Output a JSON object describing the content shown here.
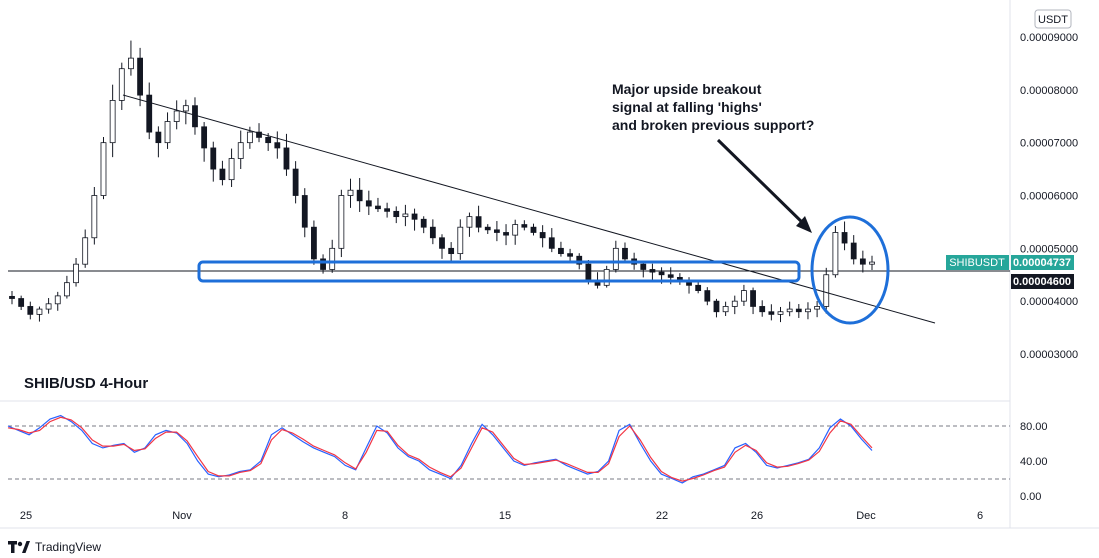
{
  "chart_data": {
    "type": "candlestick",
    "symbol": "SHIBUSDT",
    "title": "SHIB/USD 4-Hour",
    "currency": "USDT",
    "y_ticks": [
      "0.00009000",
      "0.00008000",
      "0.00007000",
      "0.00006000",
      "0.00005000",
      "0.00004000",
      "0.00003000"
    ],
    "y_range": [
      2.6e-05,
      9.3e-05
    ],
    "x_ticks": [
      "25",
      "Nov",
      "8",
      "15",
      "22",
      "26",
      "Dec",
      "6"
    ],
    "last_price": "0.00004737",
    "level_price": "0.00004600",
    "annotation": "Major upside breakout\nsignal at falling 'highs'\nand broken previous support?",
    "candles_approx_close": [
      4.05e-05,
      3.9e-05,
      3.75e-05,
      3.85e-05,
      3.95e-05,
      4.1e-05,
      4.35e-05,
      4.7e-05,
      5.2e-05,
      6e-05,
      7e-05,
      7.8e-05,
      8.4e-05,
      8.6e-05,
      7.9e-05,
      7.2e-05,
      7e-05,
      7.4e-05,
      7.6e-05,
      7.7e-05,
      7.3e-05,
      6.9e-05,
      6.5e-05,
      6.3e-05,
      6.7e-05,
      7e-05,
      7.2e-05,
      7.1e-05,
      7e-05,
      6.9e-05,
      6.5e-05,
      6e-05,
      5.4e-05,
      4.8e-05,
      4.6e-05,
      5e-05,
      6e-05,
      6.1e-05,
      5.9e-05,
      5.8e-05,
      5.75e-05,
      5.7e-05,
      5.6e-05,
      5.65e-05,
      5.55e-05,
      5.4e-05,
      5.2e-05,
      5e-05,
      4.9e-05,
      5.4e-05,
      5.6e-05,
      5.4e-05,
      5.35e-05,
      5.3e-05,
      5.25e-05,
      5.45e-05,
      5.4e-05,
      5.3e-05,
      5.2e-05,
      5e-05,
      4.9e-05,
      4.85e-05,
      4.7e-05,
      4.4e-05,
      4.3e-05,
      4.6e-05,
      5e-05,
      4.8e-05,
      4.7e-05,
      4.6e-05,
      4.55e-05,
      4.5e-05,
      4.45e-05,
      4.4e-05,
      4.3e-05,
      4.2e-05,
      4e-05,
      3.8e-05,
      3.9e-05,
      4e-05,
      4.2e-05,
      3.9e-05,
      3.8e-05,
      3.75e-05,
      3.8e-05,
      3.85e-05,
      3.8e-05,
      3.85e-05,
      3.9e-05,
      4.5e-05,
      5.3e-05,
      5.1e-05,
      4.8e-05,
      4.7e-05,
      4.74e-05
    ],
    "oscillator": {
      "y_ticks": [
        "80.00",
        "40.00",
        "0.00"
      ],
      "y_range": [
        0,
        100
      ],
      "levels": [
        80,
        20
      ],
      "series": [
        {
          "color": "#2962ff",
          "values": [
            80,
            75,
            70,
            78,
            88,
            92,
            85,
            75,
            60,
            55,
            58,
            60,
            50,
            55,
            70,
            75,
            72,
            60,
            40,
            25,
            22,
            24,
            28,
            30,
            40,
            70,
            78,
            70,
            62,
            55,
            50,
            45,
            35,
            30,
            55,
            80,
            72,
            55,
            45,
            40,
            30,
            25,
            20,
            35,
            60,
            82,
            70,
            55,
            40,
            35,
            38,
            40,
            42,
            35,
            30,
            25,
            28,
            40,
            75,
            82,
            60,
            40,
            25,
            20,
            15,
            22,
            25,
            30,
            35,
            55,
            60,
            50,
            35,
            32,
            35,
            38,
            42,
            55,
            78,
            88,
            80,
            65,
            52
          ]
        },
        {
          "color": "#f23645",
          "values": [
            78,
            76,
            72,
            75,
            85,
            90,
            87,
            78,
            64,
            57,
            57,
            59,
            52,
            54,
            66,
            73,
            73,
            63,
            45,
            28,
            23,
            23,
            27,
            29,
            37,
            64,
            76,
            72,
            65,
            57,
            52,
            47,
            38,
            31,
            50,
            75,
            74,
            58,
            47,
            42,
            33,
            27,
            22,
            32,
            55,
            78,
            73,
            58,
            43,
            36,
            37,
            39,
            41,
            37,
            32,
            27,
            27,
            37,
            68,
            80,
            64,
            44,
            28,
            21,
            17,
            20,
            24,
            29,
            33,
            50,
            58,
            52,
            38,
            33,
            34,
            37,
            41,
            51,
            72,
            86,
            82,
            68,
            55
          ]
        }
      ]
    }
  }
}
